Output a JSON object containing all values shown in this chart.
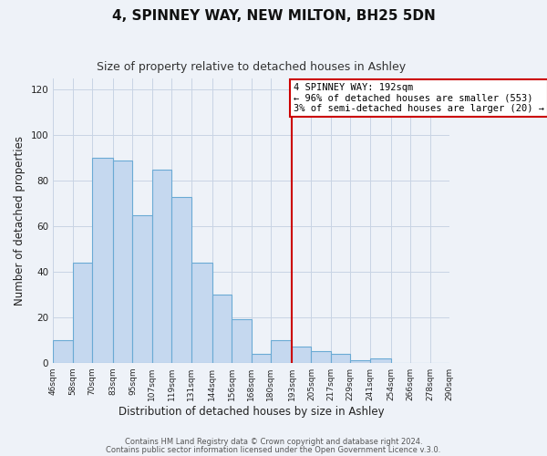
{
  "title": "4, SPINNEY WAY, NEW MILTON, BH25 5DN",
  "subtitle": "Size of property relative to detached houses in Ashley",
  "xlabel": "Distribution of detached houses by size in Ashley",
  "ylabel": "Number of detached properties",
  "bar_edges": [
    46,
    58,
    70,
    83,
    95,
    107,
    119,
    131,
    144,
    156,
    168,
    180,
    193,
    205,
    217,
    229,
    241,
    254,
    266,
    278,
    290
  ],
  "bar_heights": [
    10,
    44,
    90,
    89,
    65,
    85,
    73,
    44,
    30,
    19,
    4,
    10,
    7,
    5,
    4,
    1,
    2,
    0,
    0,
    0
  ],
  "bar_color": "#c5d8ef",
  "bar_edge_color": "#6aaad4",
  "reference_line_x": 193,
  "reference_line_color": "#cc0000",
  "annotation_title": "4 SPINNEY WAY: 192sqm",
  "annotation_line1": "← 96% of detached houses are smaller (553)",
  "annotation_line2": "3% of semi-detached houses are larger (20) →",
  "annotation_box_edge_color": "#cc0000",
  "ylim": [
    0,
    125
  ],
  "yticks": [
    0,
    20,
    40,
    60,
    80,
    100,
    120
  ],
  "tick_labels": [
    "46sqm",
    "58sqm",
    "70sqm",
    "83sqm",
    "95sqm",
    "107sqm",
    "119sqm",
    "131sqm",
    "144sqm",
    "156sqm",
    "168sqm",
    "180sqm",
    "193sqm",
    "205sqm",
    "217sqm",
    "229sqm",
    "241sqm",
    "254sqm",
    "266sqm",
    "278sqm",
    "290sqm"
  ],
  "footer1": "Contains HM Land Registry data © Crown copyright and database right 2024.",
  "footer2": "Contains public sector information licensed under the Open Government Licence v.3.0.",
  "bg_color": "#eef2f8",
  "grid_color": "#c8d4e4",
  "plot_bg_color": "#eef2f8"
}
